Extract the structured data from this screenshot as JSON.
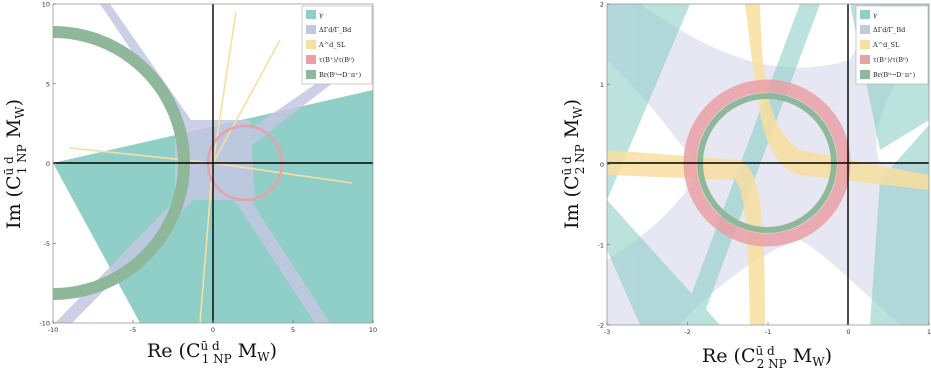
{
  "colors": {
    "gamma": "#8fcfc8",
    "deltaGamma": "#c4c7e2",
    "asl": "#f8dfa0",
    "tau": "#e9a0a6",
    "br": "#8fb89a"
  },
  "legend_entries": [
    {
      "label": "γ",
      "color": "#8fcfc8"
    },
    {
      "label": "ΔΓd/Γ_Bd",
      "color": "#c4c7e2"
    },
    {
      "label": "A^d_SL",
      "color": "#f8dfa0"
    },
    {
      "label": "τ(B⁺)/τ(B⁰)",
      "color": "#e9a0a6"
    },
    {
      "label": "Br(B⁰→D⁻π⁺)",
      "color": "#8fb89a"
    }
  ],
  "chart_data": [
    {
      "type": "area",
      "xlabel": "Re (C^{ūd}_{1 NP} M_W)",
      "ylabel": "Im (C^{ūd}_{1 NP} M_W)",
      "xlim": [
        -10,
        10
      ],
      "ylim": [
        -10,
        10
      ],
      "x_ticks": [
        "-10",
        "-5",
        "0",
        "5",
        "10"
      ],
      "y_ticks": [
        "10",
        "5",
        "0",
        "-5",
        "-10"
      ],
      "legend_position": "top-right",
      "series": [
        {
          "name": "γ",
          "values": []
        },
        {
          "name": "ΔΓd/Γ_Bd",
          "values": []
        },
        {
          "name": "A^d_SL",
          "values": []
        },
        {
          "name": "τ(B⁺)/τ(B⁰)",
          "values": [],
          "center": [
            2,
            0
          ],
          "radius": 2.3
        },
        {
          "name": "Br(B⁰→D⁻π⁺)",
          "values": [],
          "center": [
            -10,
            0
          ],
          "radius": [
            7.7,
            8.6
          ]
        }
      ]
    },
    {
      "type": "area",
      "xlabel": "Re (C^{ūd}_{2 NP} M_W)",
      "ylabel": "Im (C^{ūd}_{2 NP} M_W)",
      "xlim": [
        -3,
        1
      ],
      "ylim": [
        -2,
        2
      ],
      "x_ticks": [
        "-3",
        "-2",
        "-1",
        "0",
        "1"
      ],
      "y_ticks": [
        "2",
        "1",
        "0",
        "-1",
        "-2"
      ],
      "legend_position": "top-right",
      "series": [
        {
          "name": "γ",
          "values": []
        },
        {
          "name": "ΔΓd/Γ_Bd",
          "values": []
        },
        {
          "name": "A^d_SL",
          "values": []
        },
        {
          "name": "τ(B⁺)/τ(B⁰)",
          "values": [],
          "center": [
            -1,
            0
          ],
          "radius": [
            0.7,
            0.88
          ]
        },
        {
          "name": "Br(B⁰→D⁻π⁺)",
          "values": [],
          "center": [
            -1,
            0
          ],
          "radius": [
            0.66,
            0.74
          ]
        }
      ]
    }
  ]
}
